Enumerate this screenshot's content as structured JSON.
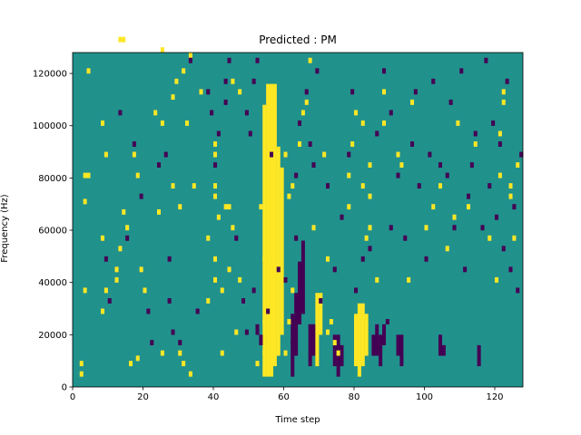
{
  "chart_data": {
    "type": "heatmap",
    "title": "Predicted : PM",
    "xlabel": "Time step",
    "ylabel": "Frequency (Hz)",
    "xlim": [
      0,
      128
    ],
    "ylim": [
      0,
      128000
    ],
    "x_ticks": [
      0,
      20,
      40,
      60,
      80,
      100,
      120
    ],
    "y_ticks": [
      0,
      20000,
      40000,
      60000,
      80000,
      100000,
      120000
    ],
    "n_time_steps": 128,
    "n_freq_bins": 64,
    "levels": [
      -1,
      0,
      1
    ],
    "colors": {
      "-1": "#440154",
      "0": "#21918c",
      "1": "#fde725"
    },
    "grid": false,
    "cells": {
      "high": [
        [
          2,
          2,
          1
        ],
        [
          2,
          4,
          1
        ],
        [
          3,
          18,
          1
        ],
        [
          3,
          35,
          1
        ],
        [
          3,
          40,
          1
        ],
        [
          4,
          40,
          1
        ],
        [
          4,
          60,
          1
        ],
        [
          8,
          14,
          1
        ],
        [
          8,
          28,
          1
        ],
        [
          8,
          50,
          1
        ],
        [
          9,
          18,
          1
        ],
        [
          9,
          44,
          1
        ],
        [
          12,
          20,
          1
        ],
        [
          12,
          22,
          1
        ],
        [
          13,
          26,
          1
        ],
        [
          13,
          66,
          1
        ],
        [
          14,
          33,
          1
        ],
        [
          14,
          66,
          1
        ],
        [
          15,
          30,
          1
        ],
        [
          16,
          4,
          1
        ],
        [
          17,
          44,
          1
        ],
        [
          18,
          5,
          1
        ],
        [
          18,
          40,
          1
        ],
        [
          19,
          22,
          1
        ],
        [
          20,
          18,
          1
        ],
        [
          23,
          52,
          1
        ],
        [
          24,
          33,
          1
        ],
        [
          25,
          6,
          1
        ],
        [
          25,
          50,
          1
        ],
        [
          25,
          64,
          1
        ],
        [
          28,
          38,
          1
        ],
        [
          28,
          55,
          1
        ],
        [
          29,
          58,
          1
        ],
        [
          30,
          6,
          1
        ],
        [
          30,
          34,
          1
        ],
        [
          31,
          60,
          1
        ],
        [
          31,
          4,
          1
        ],
        [
          33,
          2,
          1
        ],
        [
          32,
          50,
          1
        ],
        [
          33,
          63,
          1
        ],
        [
          34,
          38,
          1
        ],
        [
          36,
          56,
          1
        ],
        [
          38,
          16,
          1
        ],
        [
          38,
          28,
          1
        ],
        [
          40,
          20,
          1
        ],
        [
          40,
          24,
          1
        ],
        [
          40,
          36,
          1
        ],
        [
          40,
          38,
          1
        ],
        [
          40,
          44,
          1
        ],
        [
          40,
          46,
          1
        ],
        [
          41,
          32,
          1
        ],
        [
          42,
          6,
          1
        ],
        [
          42,
          18,
          1
        ],
        [
          43,
          34,
          1
        ],
        [
          44,
          22,
          1
        ],
        [
          44,
          34,
          1
        ],
        [
          45,
          30,
          1
        ],
        [
          45,
          58,
          1
        ],
        [
          46,
          10,
          1
        ],
        [
          47,
          20,
          1
        ],
        [
          47,
          56,
          1
        ],
        [
          52,
          4,
          1
        ],
        [
          53,
          34,
          1
        ],
        [
          54,
          6,
          1
        ],
        [
          54,
          12,
          1
        ],
        [
          54,
          24,
          1
        ],
        [
          60,
          6,
          1
        ],
        [
          60,
          44,
          1
        ],
        [
          61,
          12,
          1
        ],
        [
          61,
          36,
          1
        ],
        [
          62,
          18,
          1
        ],
        [
          62,
          38,
          1
        ],
        [
          64,
          46,
          1
        ],
        [
          65,
          52,
          1
        ],
        [
          66,
          54,
          1
        ],
        [
          67,
          62,
          1
        ],
        [
          68,
          30,
          1
        ],
        [
          71,
          44,
          1
        ],
        [
          72,
          10,
          1
        ],
        [
          72,
          24,
          1
        ],
        [
          73,
          12,
          1
        ],
        [
          74,
          8,
          1
        ],
        [
          75,
          6,
          1
        ],
        [
          78,
          34,
          1
        ],
        [
          78,
          40,
          1
        ],
        [
          79,
          46,
          1
        ],
        [
          80,
          52,
          1
        ],
        [
          82,
          38,
          1
        ],
        [
          82,
          50,
          1
        ],
        [
          83,
          28,
          1
        ],
        [
          84,
          30,
          1
        ],
        [
          84,
          36,
          1
        ],
        [
          84,
          42,
          1
        ],
        [
          86,
          20,
          1
        ],
        [
          88,
          50,
          1
        ],
        [
          88,
          56,
          1
        ],
        [
          92,
          44,
          1
        ],
        [
          93,
          42,
          1
        ],
        [
          95,
          20,
          1
        ],
        [
          96,
          54,
          1
        ],
        [
          100,
          30,
          1
        ],
        [
          102,
          34,
          1
        ],
        [
          104,
          38,
          1
        ],
        [
          106,
          26,
          1
        ],
        [
          108,
          32,
          1
        ],
        [
          109,
          50,
          1
        ],
        [
          112,
          34,
          1
        ],
        [
          114,
          46,
          1
        ],
        [
          118,
          28,
          1
        ],
        [
          120,
          20,
          1
        ],
        [
          121,
          40,
          1
        ],
        [
          121,
          48,
          1
        ],
        [
          122,
          54,
          1
        ],
        [
          122,
          56,
          1
        ],
        [
          124,
          36,
          1
        ],
        [
          124,
          38,
          1
        ],
        [
          125,
          28,
          1
        ],
        [
          126,
          42,
          1
        ]
      ],
      "low": [
        [
          9,
          24,
          -1
        ],
        [
          10,
          16,
          -1
        ],
        [
          13,
          52,
          -1
        ],
        [
          15,
          28,
          -1
        ],
        [
          17,
          46,
          -1
        ],
        [
          19,
          36,
          -1
        ],
        [
          21,
          14,
          -1
        ],
        [
          22,
          8,
          -1
        ],
        [
          24,
          42,
          -1
        ],
        [
          26,
          44,
          -1
        ],
        [
          27,
          16,
          -1
        ],
        [
          27,
          24,
          -1
        ],
        [
          28,
          10,
          -1
        ],
        [
          30,
          8,
          -1
        ],
        [
          33,
          62,
          -1
        ],
        [
          35,
          14,
          -1
        ],
        [
          38,
          56,
          -1
        ],
        [
          39,
          52,
          -1
        ],
        [
          40,
          42,
          -1
        ],
        [
          41,
          48,
          -1
        ],
        [
          43,
          54,
          -1
        ],
        [
          43,
          58,
          -1
        ],
        [
          44,
          62,
          -1
        ],
        [
          46,
          28,
          -1
        ],
        [
          48,
          16,
          -1
        ],
        [
          49,
          10,
          -1
        ],
        [
          49,
          52,
          -1
        ],
        [
          50,
          48,
          -1
        ],
        [
          51,
          18,
          -1
        ],
        [
          51,
          58,
          -1
        ],
        [
          52,
          62,
          -1
        ],
        [
          55,
          14,
          -1
        ],
        [
          56,
          44,
          -1
        ],
        [
          58,
          22,
          -1
        ],
        [
          60,
          20,
          -1
        ],
        [
          62,
          8,
          -1
        ],
        [
          63,
          28,
          -1
        ],
        [
          63,
          40,
          -1
        ],
        [
          64,
          50,
          -1
        ],
        [
          66,
          56,
          -1
        ],
        [
          67,
          46,
          -1
        ],
        [
          68,
          42,
          -1
        ],
        [
          69,
          60,
          -1
        ],
        [
          70,
          16,
          -1
        ],
        [
          72,
          38,
          -1
        ],
        [
          74,
          22,
          -1
        ],
        [
          76,
          32,
          -1
        ],
        [
          78,
          44,
          -1
        ],
        [
          79,
          56,
          -1
        ],
        [
          80,
          18,
          -1
        ],
        [
          82,
          24,
          -1
        ],
        [
          84,
          26,
          -1
        ],
        [
          86,
          48,
          -1
        ],
        [
          88,
          60,
          -1
        ],
        [
          89,
          12,
          -1
        ],
        [
          90,
          30,
          -1
        ],
        [
          90,
          52,
          -1
        ],
        [
          92,
          40,
          -1
        ],
        [
          94,
          28,
          -1
        ],
        [
          96,
          46,
          -1
        ],
        [
          97,
          56,
          -1
        ],
        [
          98,
          38,
          -1
        ],
        [
          100,
          24,
          -1
        ],
        [
          101,
          44,
          -1
        ],
        [
          102,
          58,
          -1
        ],
        [
          104,
          42,
          -1
        ],
        [
          106,
          40,
          -1
        ],
        [
          107,
          54,
          -1
        ],
        [
          108,
          30,
          -1
        ],
        [
          110,
          60,
          -1
        ],
        [
          111,
          22,
          -1
        ],
        [
          112,
          36,
          -1
        ],
        [
          113,
          42,
          -1
        ],
        [
          114,
          48,
          -1
        ],
        [
          116,
          30,
          -1
        ],
        [
          117,
          62,
          -1
        ],
        [
          118,
          38,
          -1
        ],
        [
          119,
          50,
          -1
        ],
        [
          120,
          32,
          -1
        ],
        [
          121,
          46,
          -1
        ],
        [
          122,
          26,
          -1
        ],
        [
          123,
          58,
          -1
        ],
        [
          124,
          22,
          -1
        ],
        [
          125,
          34,
          -1
        ],
        [
          126,
          18,
          -1
        ],
        [
          127,
          44,
          -1
        ]
      ],
      "bands": [
        [
          54,
          2,
          52,
          1
        ],
        [
          55,
          2,
          56,
          1
        ],
        [
          56,
          2,
          56,
          1
        ],
        [
          57,
          4,
          54,
          1
        ],
        [
          58,
          6,
          40,
          1
        ],
        [
          59,
          10,
          32,
          1
        ],
        [
          53,
          8,
          2,
          -1
        ],
        [
          52,
          10,
          2,
          -1
        ],
        [
          62,
          2,
          12,
          -1
        ],
        [
          63,
          6,
          12,
          -1
        ],
        [
          64,
          12,
          12,
          -1
        ],
        [
          65,
          14,
          14,
          -1
        ],
        [
          67,
          4,
          8,
          -1
        ],
        [
          68,
          6,
          6,
          -1
        ],
        [
          69,
          4,
          14,
          1
        ],
        [
          70,
          10,
          8,
          1
        ],
        [
          74,
          4,
          6,
          -1
        ],
        [
          75,
          2,
          8,
          -1
        ],
        [
          76,
          4,
          4,
          -1
        ],
        [
          80,
          4,
          10,
          1
        ],
        [
          81,
          2,
          14,
          1
        ],
        [
          82,
          4,
          12,
          1
        ],
        [
          83,
          6,
          8,
          1
        ],
        [
          85,
          6,
          4,
          -1
        ],
        [
          86,
          6,
          6,
          -1
        ],
        [
          87,
          4,
          6,
          -1
        ],
        [
          88,
          8,
          4,
          -1
        ],
        [
          92,
          6,
          4,
          -1
        ],
        [
          93,
          4,
          6,
          -1
        ],
        [
          104,
          6,
          4,
          -1
        ],
        [
          105,
          6,
          2,
          -1
        ],
        [
          115,
          4,
          4,
          -1
        ]
      ]
    }
  }
}
